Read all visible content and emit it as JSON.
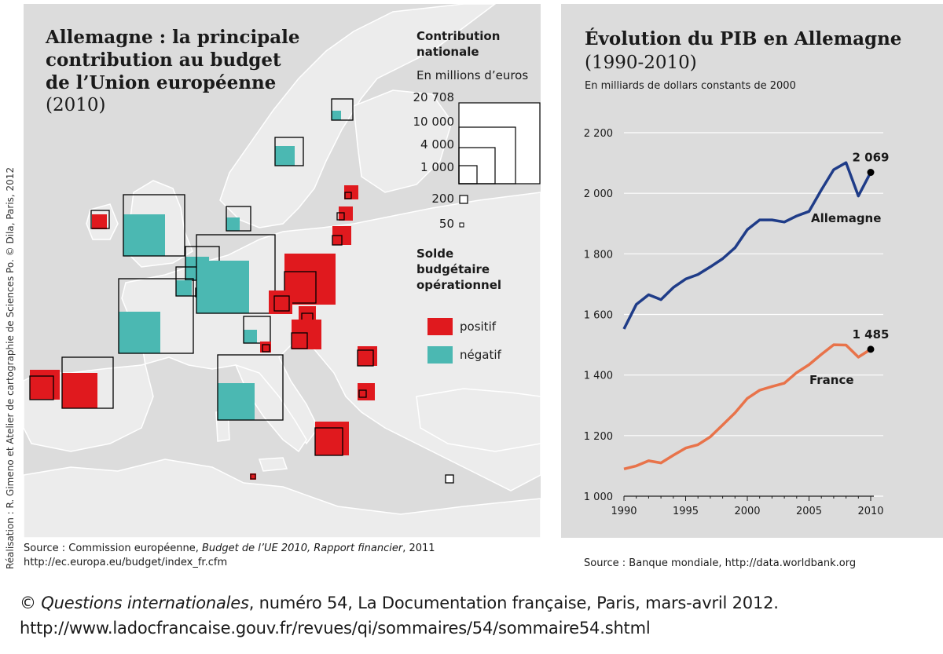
{
  "map": {
    "title_lines": [
      "Allemagne : la principale",
      "contribution au budget",
      "de l’Union européenne"
    ],
    "title_year": "(2010)",
    "legend": {
      "contribution_title": "Contribution",
      "contribution_title2": "nationale",
      "unit": "En millions d’euros",
      "scale": [
        "20 708",
        "10 000",
        "4 000",
        "1 000",
        "200",
        "50"
      ],
      "balance_title": [
        "Solde",
        "budgétaire",
        "opérationnel"
      ],
      "positive_label": "positif",
      "negative_label": "négatif"
    },
    "colors": {
      "positive": "#e0191e",
      "negative": "#4bb8b2",
      "land": "#ececec",
      "sea": "#dcdcdc"
    },
    "credit": "Réalisation : R. Gimeno et Atelier de cartographie de Sciences Po. © Dila, Paris, 2012",
    "source_prefix": "Source : Commission européenne, ",
    "source_italic": "Budget de l’UE 2010, Rapport financier",
    "source_suffix": ", 2011",
    "source_url": "http://ec.europa.eu/budget/index_fr.cfm"
  },
  "chart_data": {
    "type": "line",
    "title": "Évolution du PIB en Allemagne",
    "subtitle": "(1990-2010)",
    "ylabel": "En milliards de dollars constants de 2000",
    "x": [
      1990,
      1991,
      1992,
      1993,
      1994,
      1995,
      1996,
      1997,
      1998,
      1999,
      2000,
      2001,
      2002,
      2003,
      2004,
      2005,
      2006,
      2007,
      2008,
      2009,
      2010
    ],
    "ylim": [
      1000,
      2200
    ],
    "yticks": [
      "1 000",
      "1 200",
      "1 400",
      "1 600",
      "1 800",
      "2 000",
      "2 200"
    ],
    "xticks": [
      "1990",
      "1995",
      "2000",
      "2005",
      "2010"
    ],
    "series": [
      {
        "name": "Allemagne",
        "color": "#1f3c88",
        "values": [
          1552,
          1633,
          1665,
          1649,
          1689,
          1717,
          1732,
          1757,
          1784,
          1820,
          1880,
          1912,
          1912,
          1905,
          1925,
          1940,
          2011,
          2078,
          2101,
          1991,
          2069
        ],
        "end_label": "2 069"
      },
      {
        "name": "France",
        "color": "#e8734a",
        "values": [
          1090,
          1100,
          1117,
          1110,
          1135,
          1159,
          1170,
          1196,
          1235,
          1275,
          1323,
          1350,
          1362,
          1373,
          1408,
          1434,
          1468,
          1500,
          1499,
          1459,
          1485
        ],
        "end_label": "1 485"
      }
    ],
    "grid": true,
    "source": "Source :  Banque mondiale, http://data.worldbank.org"
  },
  "footer": {
    "line1_prefix": "© ",
    "line1_italic": "Questions internationales",
    "line1_suffix": ", numéro 54, La Documentation française, Paris, mars-avril 2012.",
    "line2": "http://www.ladocfrancaise.gouv.fr/revues/qi/sommaires/54/sommaire54.shtml"
  }
}
